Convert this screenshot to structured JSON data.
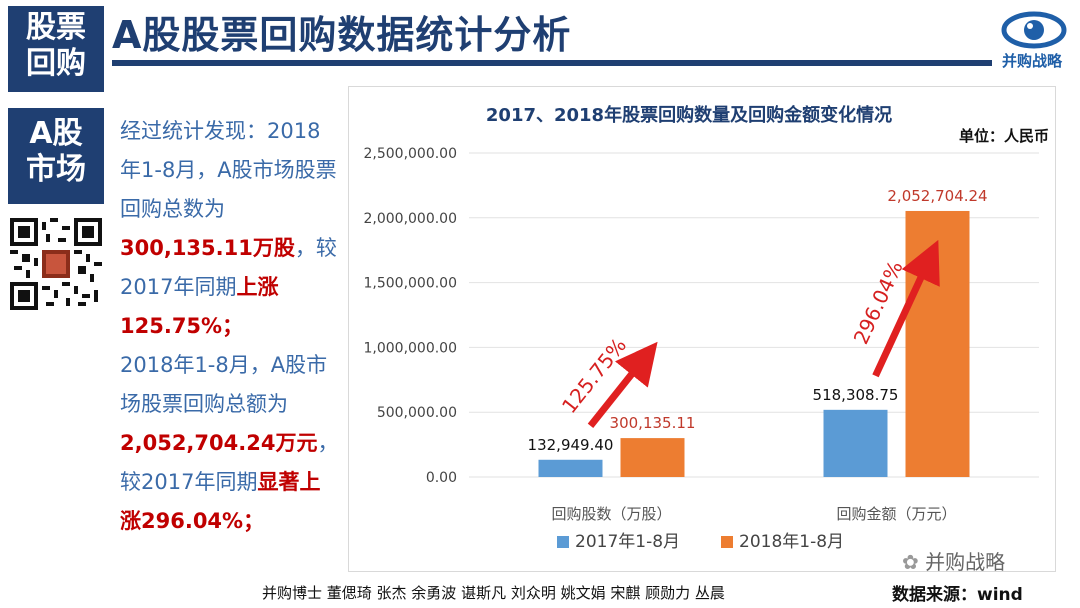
{
  "header": {
    "tag_top_line1": "股票",
    "tag_top_line2": "回购",
    "tag_mid_line1": "A股",
    "tag_mid_line2": "市场",
    "title": "A股股票回购数据统计分析",
    "logo_text": "并购战略"
  },
  "colors": {
    "navy": "#1f3f72",
    "series_2017": "#5b9bd5",
    "series_2018": "#ed7d31",
    "highlight": "#c00000",
    "arrow": "#e02020"
  },
  "summary": {
    "p1": "经过统计发现：2018年1-8月，A股市场股票回购总数为",
    "v1": "300,135.11万股",
    "p2": "，较2017年同期",
    "v2": "上涨125.75%；",
    "p3": "2018年1-8月，A股市场股票回购总额为",
    "v3": "2,052,704.24万元",
    "p4": "，较2017年同期",
    "v4": "显著上涨296.04%；"
  },
  "chart_data": {
    "type": "bar",
    "title": "2017、2018年股票回购数量及回购金额变化情况",
    "unit_label": "单位：人民币",
    "categories": [
      "回购股数（万股）",
      "回购金额（万元）"
    ],
    "series": [
      {
        "name": "2017年1-8月",
        "values": [
          132949.4,
          518308.75
        ],
        "labels": [
          "132,949.40",
          "518,308.75"
        ]
      },
      {
        "name": "2018年1-8月",
        "values": [
          300135.11,
          2052704.24
        ],
        "labels": [
          "300,135.11",
          "2,052,704.24"
        ]
      }
    ],
    "y_ticks": [
      "0.00",
      "500,000.00",
      "1,000,000.00",
      "1,500,000.00",
      "2,000,000.00",
      "2,500,000.00"
    ],
    "ylim": [
      0,
      2500000
    ],
    "grid": true,
    "legend": "bottom",
    "annotations": [
      "125.75%",
      "296.04%"
    ]
  },
  "footer": {
    "credits": "并购博士 董偲琦 张杰 余勇波 谌斯凡 刘众明 姚文娟 宋麒 顾勋力 丛晨",
    "source": "数据来源：wind",
    "wechat": "并购战略"
  }
}
